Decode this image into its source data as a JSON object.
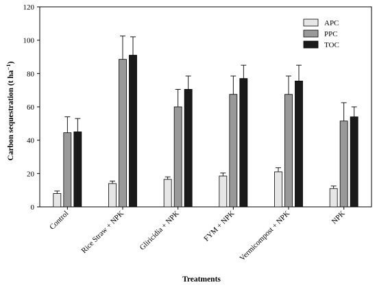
{
  "chart_data": {
    "type": "bar",
    "title": "",
    "xlabel": "Treatments",
    "ylabel_main": "Carbon sequestration (t ha",
    "ylabel_exp": "−1",
    "ylabel_close": ")",
    "ylim": [
      0,
      120
    ],
    "yticks": [
      0,
      20,
      40,
      60,
      80,
      100,
      120
    ],
    "grid": false,
    "legend_position": "top-right",
    "categories": [
      "Control",
      "Rice Straw + NPK",
      "Gliricidia + NPK",
      "FYM + NPK",
      "Vermicompost + NPK",
      "NPK"
    ],
    "series": [
      {
        "name": "APC",
        "color": "#e6e6e6",
        "values": [
          8,
          14,
          16.5,
          18.5,
          21,
          11
        ],
        "errors": [
          1.5,
          1.5,
          1.5,
          1.8,
          2.5,
          1.5
        ]
      },
      {
        "name": "PPC",
        "color": "#999999",
        "values": [
          44.5,
          88.5,
          60,
          67.5,
          67.5,
          51.5
        ],
        "errors": [
          9.5,
          14,
          10.5,
          11,
          11,
          11
        ]
      },
      {
        "name": "TOC",
        "color": "#1a1a1a",
        "values": [
          45,
          91,
          70.5,
          77,
          75.5,
          54
        ],
        "errors": [
          8,
          11,
          8,
          8,
          9.5,
          6
        ]
      }
    ]
  }
}
